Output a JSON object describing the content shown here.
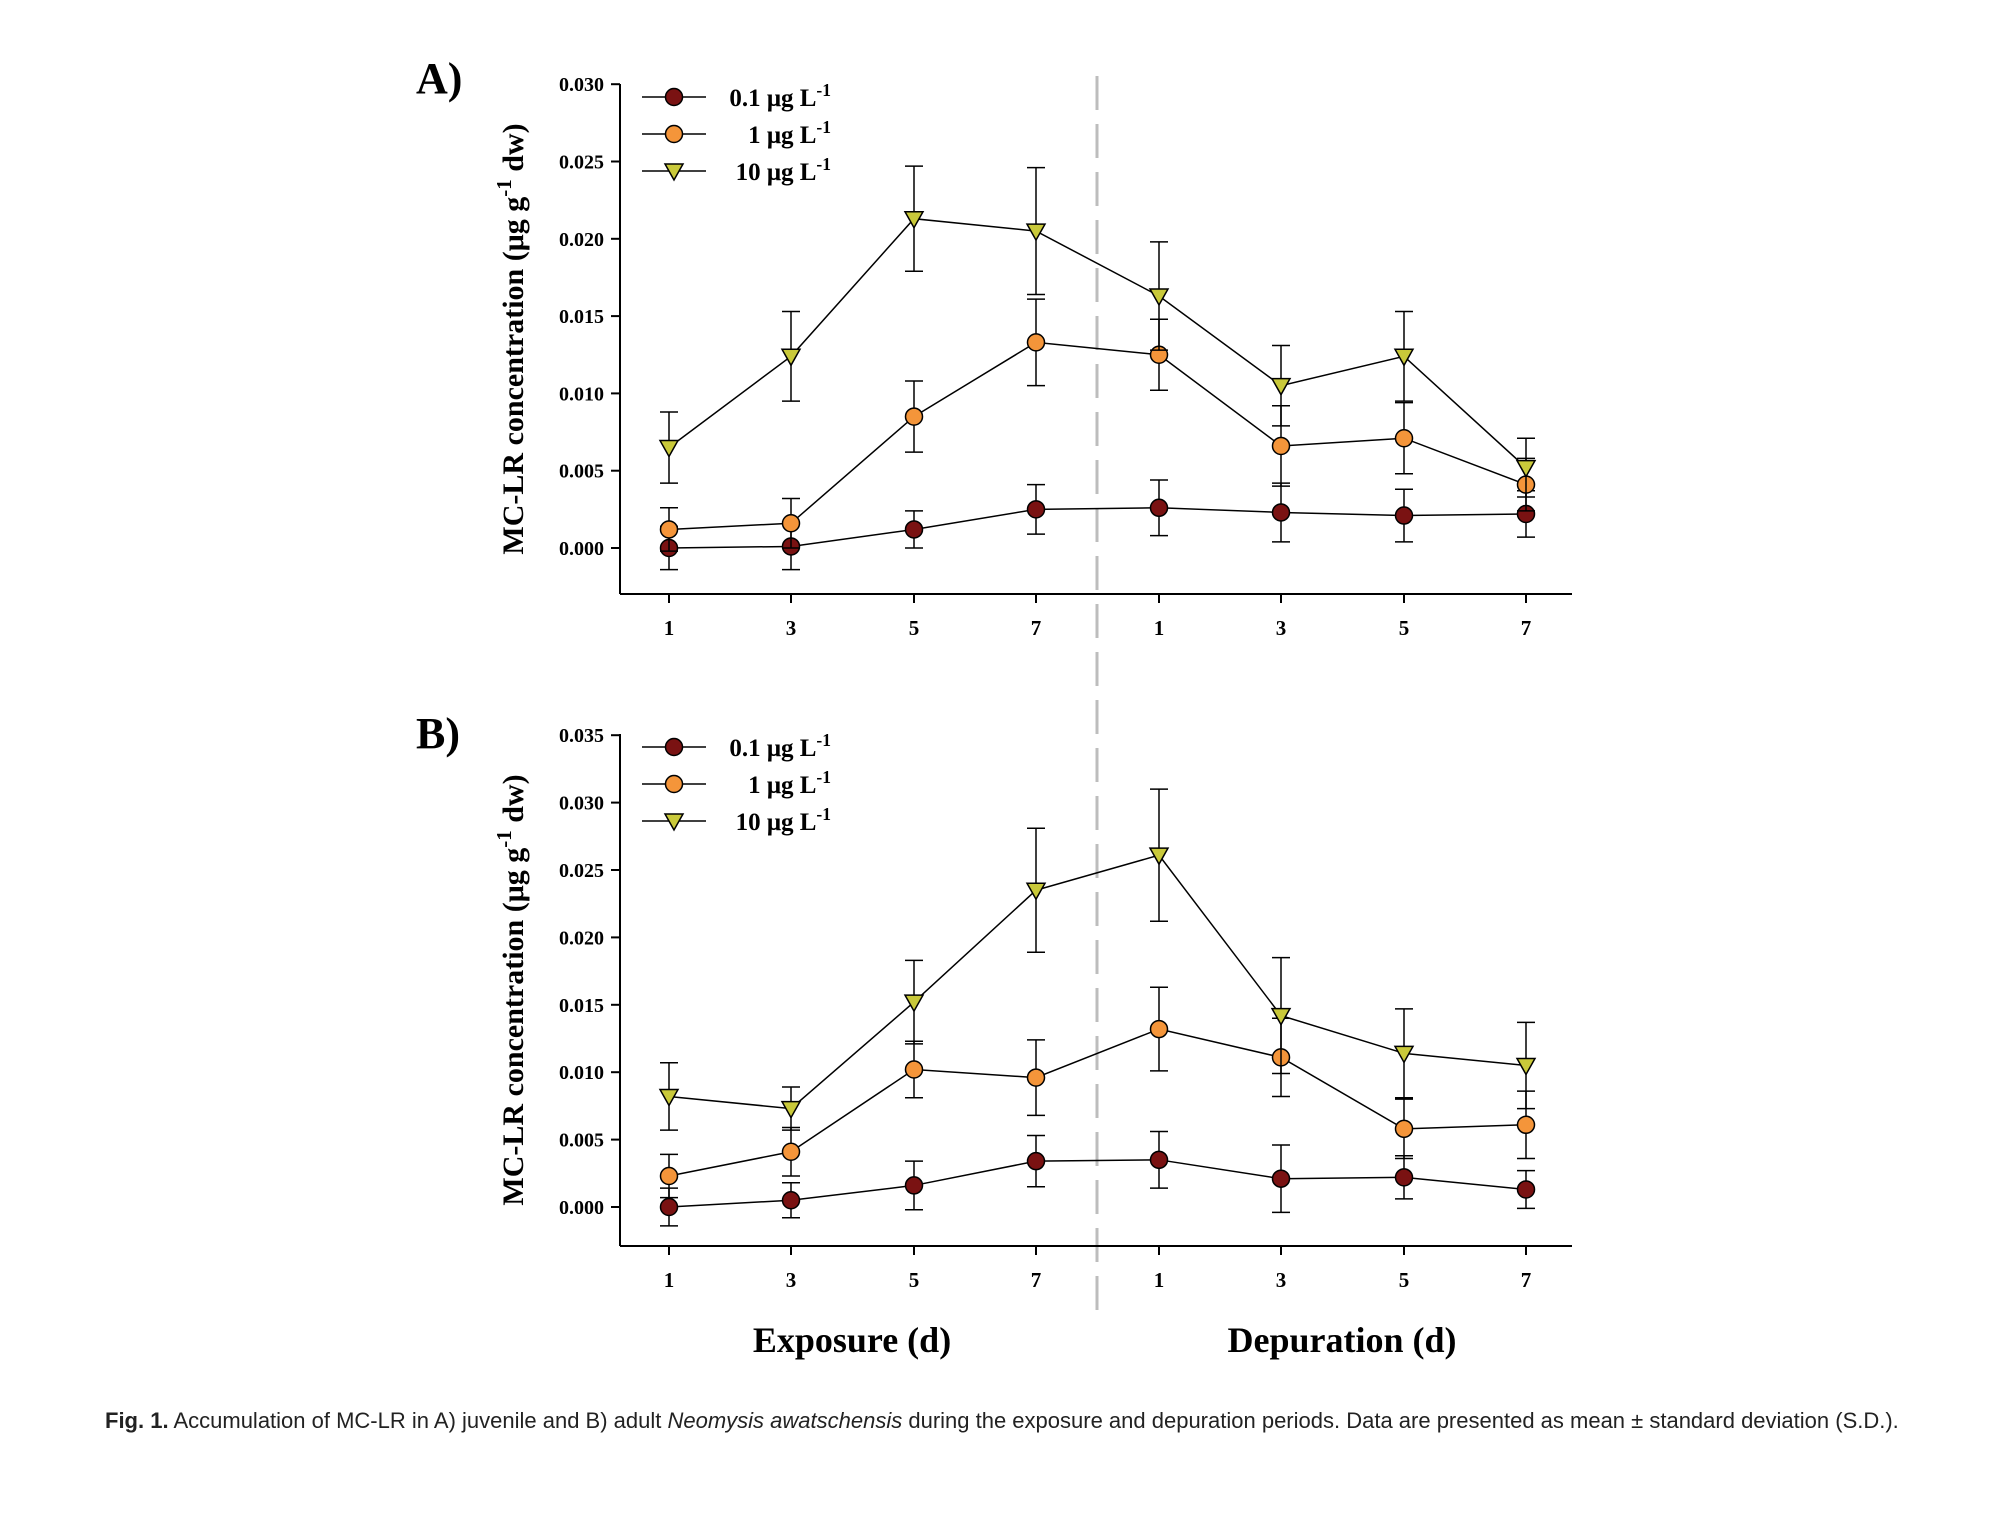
{
  "chart_data": [
    {
      "type": "line",
      "panel_label": "A)",
      "ylabel": "MC-LR concentration (μg g⁻¹ dw)",
      "ylim": [
        -0.003,
        0.03
      ],
      "yticks": [
        "0.000",
        "0.005",
        "0.010",
        "0.015",
        "0.020",
        "0.025",
        "0.030"
      ],
      "categories": [
        "1",
        "3",
        "5",
        "7",
        "1",
        "3",
        "5",
        "7"
      ],
      "series": [
        {
          "name": "0.1 μg L⁻¹",
          "color": "#7a1212",
          "marker": "circle",
          "values": [
            0.0,
            0.0001,
            0.0012,
            0.0025,
            0.0026,
            0.0023,
            0.0021,
            0.0022
          ],
          "err": [
            0.0014,
            0.0015,
            0.0012,
            0.0016,
            0.0018,
            0.0019,
            0.0017,
            0.0015
          ]
        },
        {
          "name": "1 μg L⁻¹",
          "color": "#f4953a",
          "marker": "circle",
          "values": [
            0.0012,
            0.0016,
            0.0085,
            0.0133,
            0.0125,
            0.0066,
            0.0071,
            0.0041
          ],
          "err": [
            0.0014,
            0.0016,
            0.0023,
            0.0028,
            0.0023,
            0.0026,
            0.0023,
            0.0017
          ]
        },
        {
          "name": "10 μg L⁻¹",
          "color": "#c9c93a",
          "marker": "triangle-down",
          "values": [
            0.0065,
            0.0124,
            0.0213,
            0.0205,
            0.0163,
            0.0105,
            0.0124,
            0.0052
          ],
          "err": [
            0.0023,
            0.0029,
            0.0034,
            0.0041,
            0.0035,
            0.0026,
            0.0029,
            0.0019
          ]
        }
      ]
    },
    {
      "type": "line",
      "panel_label": "B)",
      "ylabel": "MC-LR concentration (μg g⁻¹ dw)",
      "ylim": [
        -0.003,
        0.035
      ],
      "yticks": [
        "0.000",
        "0.005",
        "0.010",
        "0.015",
        "0.020",
        "0.025",
        "0.030",
        "0.035"
      ],
      "categories": [
        "1",
        "3",
        "5",
        "7",
        "1",
        "3",
        "5",
        "7"
      ],
      "series": [
        {
          "name": "0.1 μg L⁻¹",
          "color": "#7a1212",
          "marker": "circle",
          "values": [
            0.0,
            0.0005,
            0.0016,
            0.0034,
            0.0035,
            0.0021,
            0.0022,
            0.0013
          ],
          "err": [
            0.0014,
            0.0013,
            0.0018,
            0.0019,
            0.0021,
            0.0025,
            0.0016,
            0.0014
          ]
        },
        {
          "name": "1 μg L⁻¹",
          "color": "#f4953a",
          "marker": "circle",
          "values": [
            0.0023,
            0.0041,
            0.0102,
            0.0096,
            0.0132,
            0.0111,
            0.0058,
            0.0061
          ],
          "err": [
            0.0016,
            0.0018,
            0.0021,
            0.0028,
            0.0031,
            0.0029,
            0.0022,
            0.0025
          ]
        },
        {
          "name": "10 μg L⁻¹",
          "color": "#c9c93a",
          "marker": "triangle-down",
          "values": [
            0.0082,
            0.0073,
            0.0152,
            0.0235,
            0.0261,
            0.0142,
            0.0114,
            0.0105
          ],
          "err": [
            0.0025,
            0.0016,
            0.0031,
            0.0046,
            0.0049,
            0.0043,
            0.0033,
            0.0032
          ]
        }
      ]
    }
  ],
  "period_labels": {
    "exposure": "Exposure (d)",
    "depuration": "Depuration (d)"
  },
  "caption": {
    "label": "Fig. 1.",
    "text_before": " Accumulation of MC-LR in A) juvenile and B) adult ",
    "species": "Neomysis awatschensis",
    "text_after": " during the exposure and depuration periods. Data are presented as mean ± standard deviation (S.D.)."
  }
}
